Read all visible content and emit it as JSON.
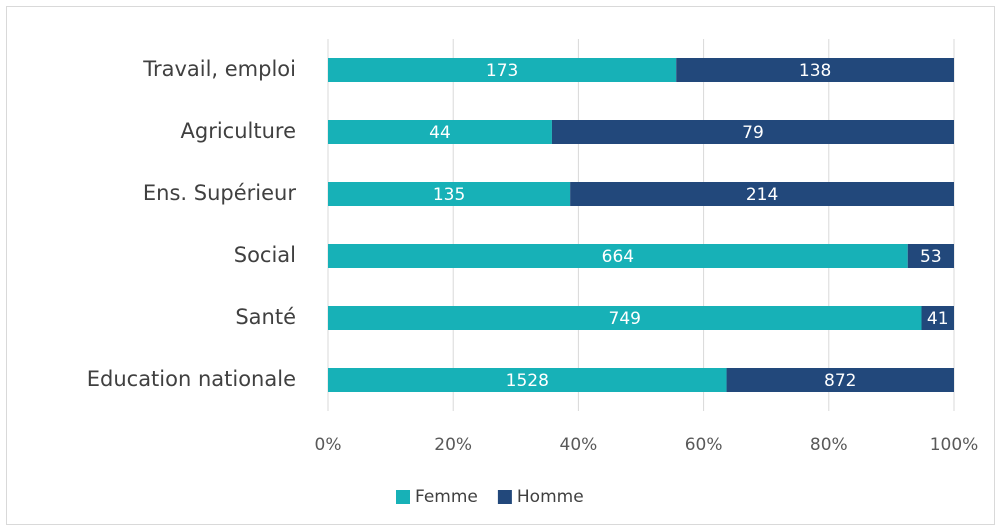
{
  "chart_data": {
    "type": "bar",
    "orientation": "horizontal",
    "stacking": "percent",
    "categories": [
      "Travail, emploi",
      "Agriculture",
      "Ens. Supérieur",
      "Social",
      "Santé",
      "Education nationale"
    ],
    "series": [
      {
        "name": "Femme",
        "color": "#17b1b7",
        "values": [
          173,
          44,
          135,
          664,
          749,
          1528
        ]
      },
      {
        "name": "Homme",
        "color": "#22487b",
        "values": [
          138,
          79,
          214,
          53,
          41,
          872
        ]
      }
    ],
    "xlim": [
      0,
      100
    ],
    "xticks": [
      {
        "value": 0,
        "label": "0%"
      },
      {
        "value": 20,
        "label": "20%"
      },
      {
        "value": 40,
        "label": "40%"
      },
      {
        "value": 60,
        "label": "60%"
      },
      {
        "value": 80,
        "label": "80%"
      },
      {
        "value": 100,
        "label": "100%"
      }
    ],
    "grid": true,
    "legend": "bottom"
  }
}
